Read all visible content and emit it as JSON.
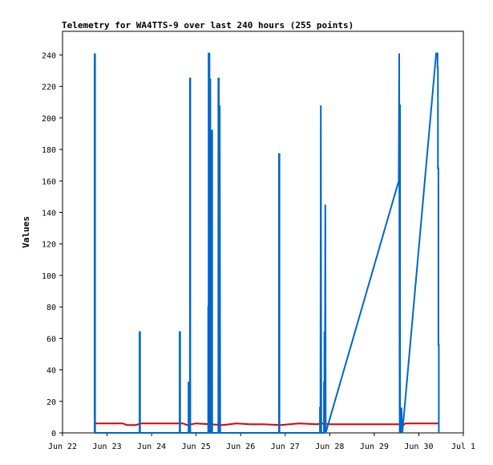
{
  "chart_data": {
    "type": "line",
    "title": "Telemetry for WA4TTS-9 over last 240 hours (255 points)",
    "xlabel": "",
    "ylabel": "Values",
    "x_unit": "days",
    "xlim": [
      0,
      9
    ],
    "ylim": [
      0,
      255
    ],
    "x_ticks": [
      {
        "value": 0,
        "label": "Jun 22"
      },
      {
        "value": 1,
        "label": "Jun 23"
      },
      {
        "value": 2,
        "label": "Jun 24"
      },
      {
        "value": 3,
        "label": "Jun 25"
      },
      {
        "value": 4,
        "label": "Jun 26"
      },
      {
        "value": 5,
        "label": "Jun 27"
      },
      {
        "value": 6,
        "label": "Jun 28"
      },
      {
        "value": 7,
        "label": "Jun 29"
      },
      {
        "value": 8,
        "label": "Jun 30"
      },
      {
        "value": 9,
        "label": "Jul 1"
      }
    ],
    "y_ticks": [
      0,
      20,
      40,
      60,
      80,
      100,
      120,
      140,
      160,
      180,
      200,
      220,
      240
    ],
    "grid": false,
    "legend": "none",
    "series": [
      {
        "color": "#dd0000",
        "x": [
          0.72,
          1.35,
          1.45,
          1.65,
          1.75,
          2.7,
          2.8,
          3.0,
          3.3,
          3.6,
          3.9,
          4.2,
          4.5,
          4.9,
          5.3,
          5.7,
          5.85,
          6.0,
          7.55,
          7.65,
          7.7,
          8.0,
          8.2,
          8.45
        ],
        "y": [
          6,
          6,
          5,
          5,
          6,
          6,
          5,
          6,
          5.5,
          5,
          6,
          5.5,
          5.5,
          5,
          6,
          5.5,
          6,
          5.5,
          5.5,
          5,
          6,
          6,
          6,
          6
        ]
      },
      {
        "color": "#0066cc",
        "x": [
          0.72,
          0.72,
          0.72,
          0.73,
          0.73,
          1.73,
          1.73,
          1.74,
          1.74,
          2.63,
          2.63,
          2.64,
          2.64,
          2.83,
          2.83,
          2.84,
          2.84,
          2.86,
          2.86,
          2.87,
          2.87,
          3.27,
          3.27,
          3.28,
          3.28,
          3.29,
          3.29,
          3.3,
          3.3,
          3.31,
          3.31,
          3.32,
          3.32,
          3.35,
          3.35,
          3.36,
          3.36,
          3.5,
          3.5,
          3.51,
          3.51,
          3.53,
          3.53,
          3.54,
          3.54,
          3.56,
          3.56,
          3.57,
          3.57,
          3.58,
          3.58,
          4.86,
          4.86,
          4.87,
          4.87,
          5.78,
          5.78,
          5.79,
          5.79,
          5.8,
          5.8,
          5.81,
          5.81,
          5.87,
          5.87,
          5.88,
          5.88,
          5.89,
          5.89,
          5.9,
          5.9,
          5.91,
          5.91,
          7.55,
          7.55,
          7.56,
          7.56,
          7.57,
          7.57,
          7.58,
          7.58,
          7.59,
          7.59,
          7.6,
          7.6,
          7.61,
          7.61,
          7.63,
          7.63,
          8.39,
          8.42,
          8.42,
          8.43,
          8.43,
          8.44,
          8.44,
          8.45,
          8.45
        ],
        "y": [
          0,
          241,
          0,
          241,
          0,
          0,
          64,
          64,
          0,
          0,
          64,
          64,
          0,
          0,
          32,
          32,
          0,
          0,
          225,
          225,
          0,
          0,
          80,
          80,
          241,
          241,
          0,
          241,
          0,
          225,
          0,
          225,
          0,
          0,
          192,
          192,
          0,
          0,
          225,
          225,
          0,
          208,
          208,
          0,
          0,
          0,
          0,
          0,
          0,
          0,
          0,
          0,
          177,
          177,
          0,
          0,
          16,
          16,
          0,
          208,
          208,
          0,
          0,
          0,
          32,
          32,
          64,
          64,
          0,
          145,
          145,
          0,
          0,
          160,
          160,
          241,
          241,
          0,
          208,
          208,
          0,
          16,
          16,
          0,
          0,
          16,
          16,
          0,
          0,
          241,
          241,
          232,
          232,
          168,
          168,
          56,
          56,
          0
        ]
      }
    ]
  }
}
